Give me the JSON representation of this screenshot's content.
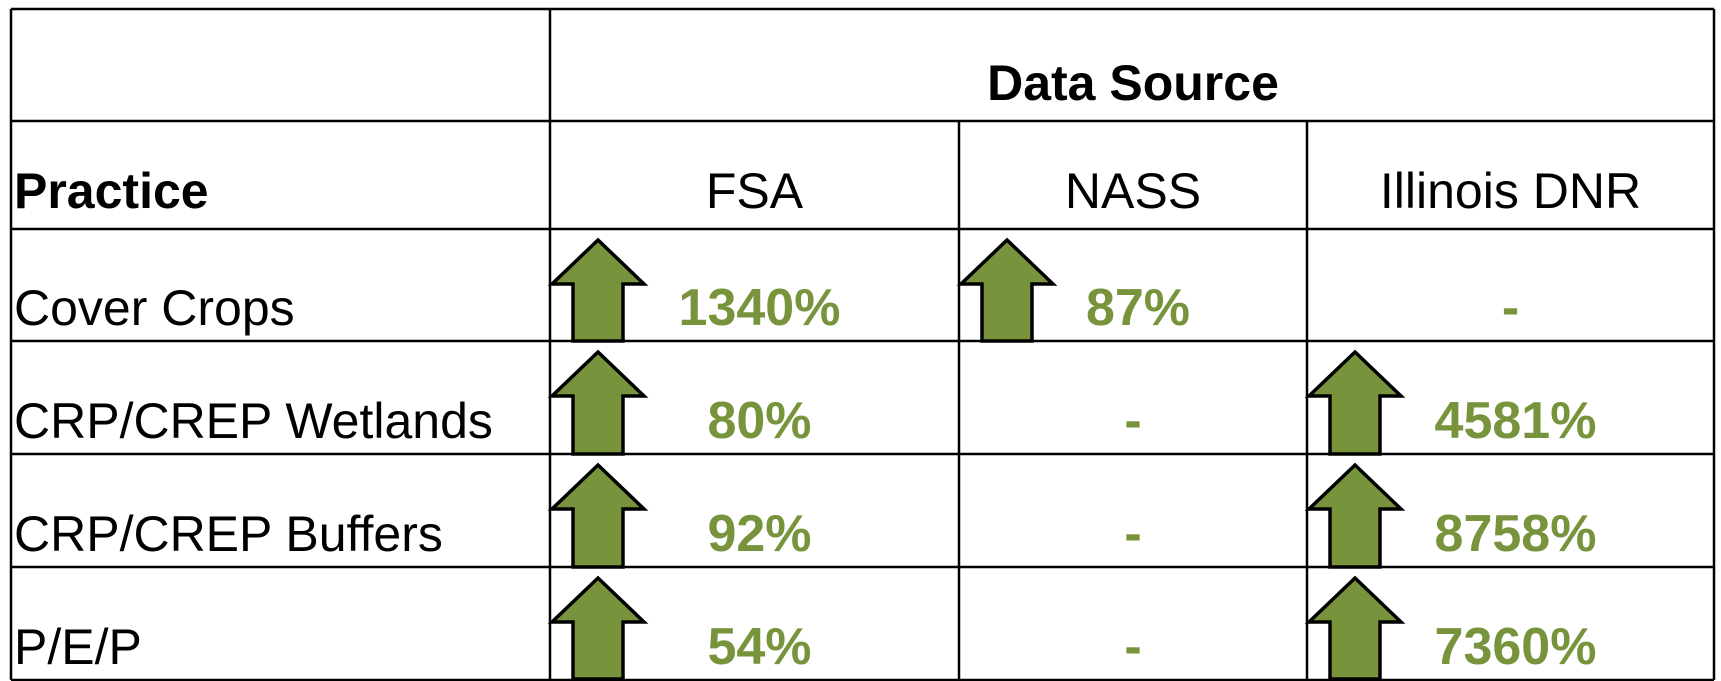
{
  "table": {
    "header": {
      "practice_label": "Practice",
      "source_label": "Data Source",
      "sources": [
        "FSA",
        "NASS",
        "Illinois DNR"
      ]
    },
    "rows": [
      {
        "practice": "Cover Crops",
        "values": [
          "1340%",
          "87%",
          "-"
        ]
      },
      {
        "practice": "CRP/CREP Wetlands",
        "values": [
          "80%",
          "-",
          "4581%"
        ]
      },
      {
        "practice": "CRP/CREP Buffers",
        "values": [
          "92%",
          "-",
          "8758%"
        ]
      },
      {
        "practice": "P/E/P",
        "values": [
          "54%",
          "-",
          "7360%"
        ]
      }
    ]
  }
}
